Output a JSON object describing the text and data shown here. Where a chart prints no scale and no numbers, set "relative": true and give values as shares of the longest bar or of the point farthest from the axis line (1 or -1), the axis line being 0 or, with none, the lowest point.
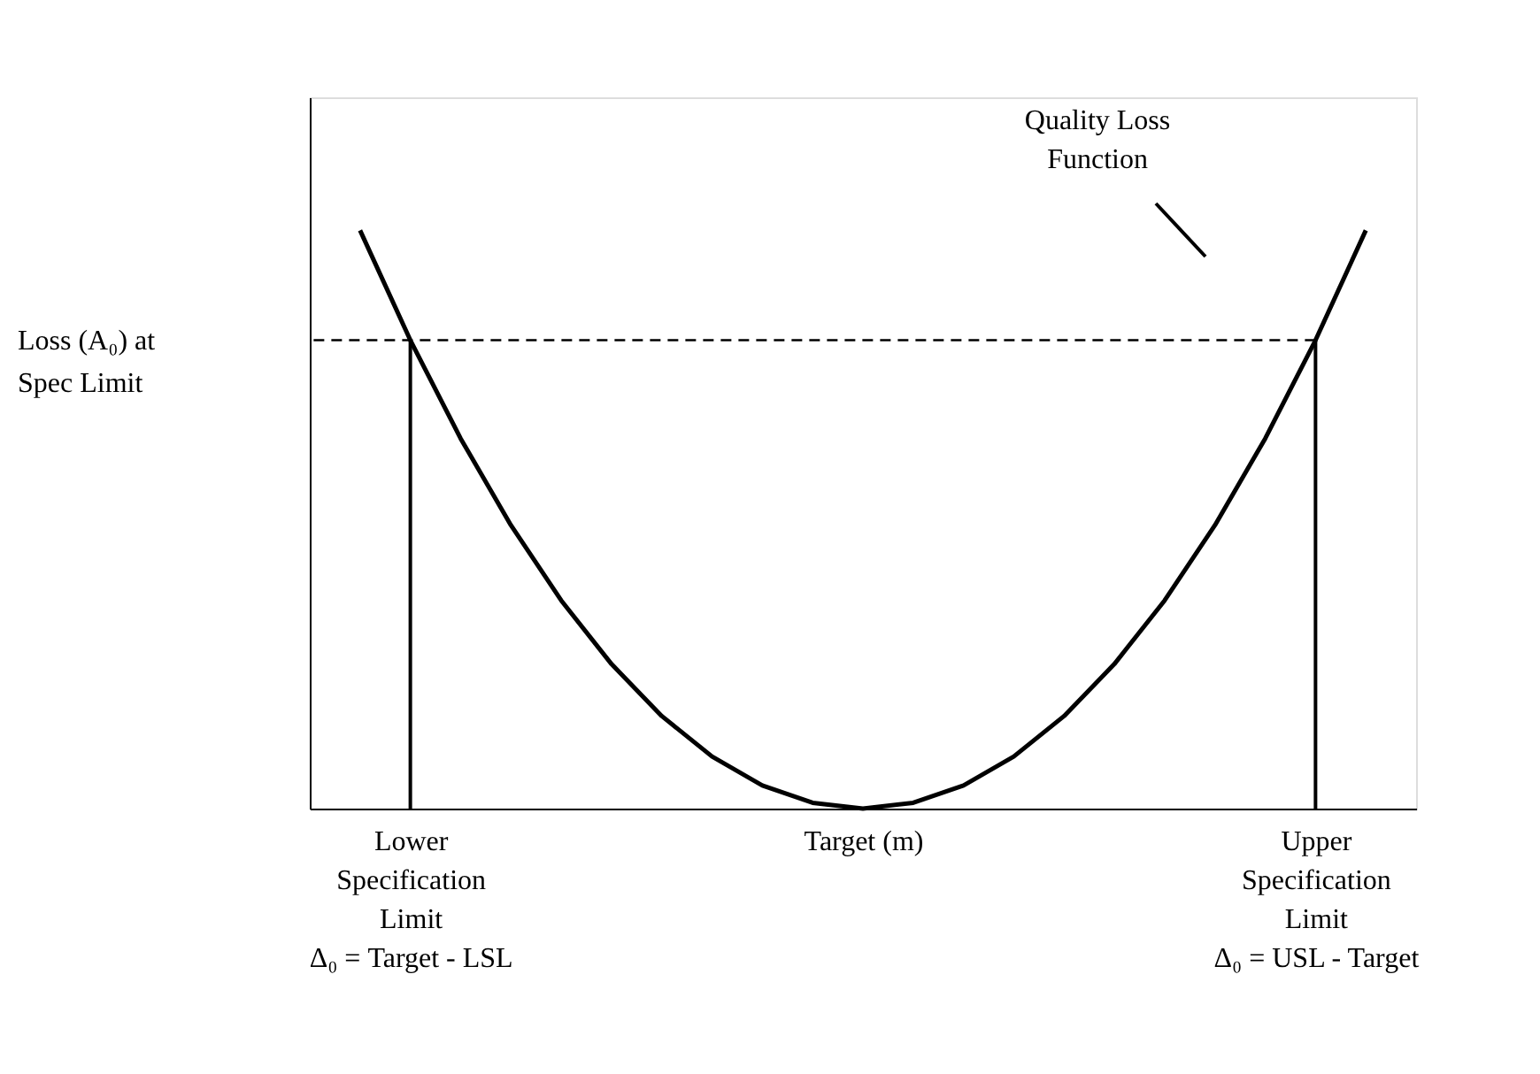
{
  "chart_data": {
    "type": "line",
    "relative": true,
    "categories": [
      null,
      "Lower\nSpecification\nLimit\nΔ₀ = Target - LSL",
      null,
      null,
      null,
      null,
      null,
      null,
      null,
      null,
      "Target (m)",
      null,
      null,
      null,
      null,
      null,
      null,
      null,
      null,
      "Upper\nSpecification\nLimit\nΔ₀ = USL - Target",
      null
    ],
    "series": [
      {
        "color": "#000000",
        "values": [
          1,
          0.81,
          0.64,
          0.49,
          0.36,
          0.25,
          0.16,
          0.09,
          0.04,
          0.01,
          0,
          0.01,
          0.04,
          0.09,
          0.16,
          0.25,
          0.36,
          0.49,
          0.64,
          0.81,
          1
        ]
      },
      {
        "type": "bar",
        "color": "#000000",
        "values": [
          null,
          0.81,
          null,
          null,
          null,
          null,
          null,
          null,
          null,
          null,
          null,
          null,
          null,
          null,
          null,
          null,
          null,
          null,
          null,
          0.81,
          null
        ]
      }
    ],
    "ref_lines": [
      {
        "axis": "y",
        "value": 0.81,
        "label": "Loss (A₀) at\nSpec Limit",
        "line_style": "dashed",
        "color": "#000000"
      }
    ],
    "annotations": [
      "Quality Loss\nFunction"
    ],
    "grid": false,
    "line_style": "solid",
    "marker": "none"
  }
}
